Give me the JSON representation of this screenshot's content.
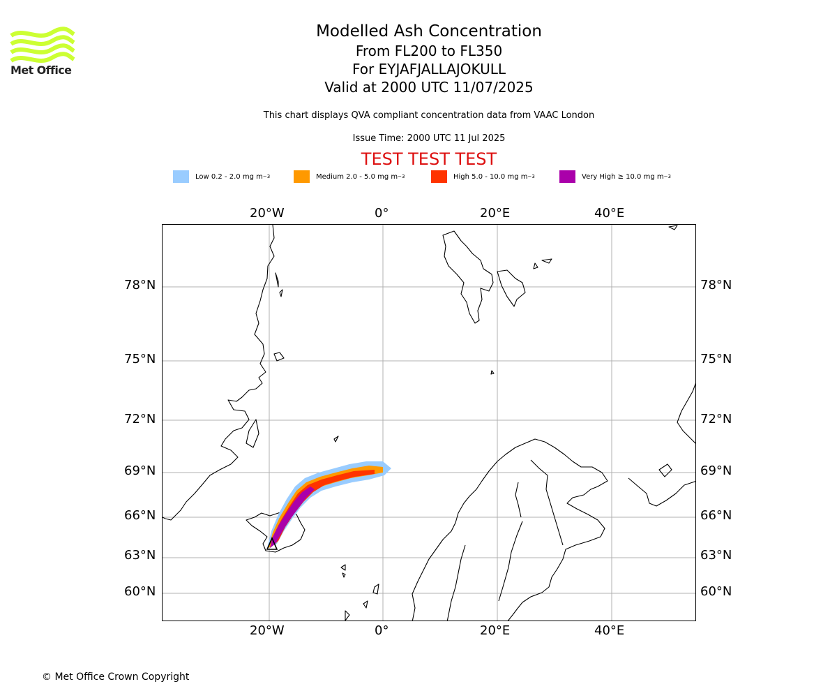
{
  "brand": {
    "logo_text": "Met Office",
    "logo_color": "#ccff33"
  },
  "title": {
    "line1": "Modelled Ash Concentration",
    "line2": "From FL200 to FL350",
    "line3": "For EYJAFJALLAJOKULL",
    "line4": "Valid at 2000 UTC 11/07/2025"
  },
  "subtitle": "This chart displays QVA compliant concentration data from VAAC London",
  "issue_time": "Issue Time: 2000 UTC 11 Jul 2025",
  "test_banner": "TEST TEST TEST",
  "legend": [
    {
      "label": "Low 0.2 - 2.0 mg m",
      "color": "#99ccff"
    },
    {
      "label": "Medium 2.0 - 5.0 mg m",
      "color": "#ff9900"
    },
    {
      "label": "High 5.0 - 10.0 mg m",
      "color": "#ff3300"
    },
    {
      "label": "Very High ≥ 10.0 mg m",
      "color": "#aa00aa"
    }
  ],
  "legend_unit_exp": "−3",
  "axes": {
    "lon_labels": [
      "20°W",
      "0°",
      "20°E",
      "40°E"
    ],
    "lat_labels": [
      "78°N",
      "75°N",
      "72°N",
      "69°N",
      "66°N",
      "63°N",
      "60°N"
    ]
  },
  "volcano": {
    "name": "EYJAFJALLAJOKULL",
    "marker": "triangle"
  },
  "copyright": "© Met Office Crown Copyright"
}
